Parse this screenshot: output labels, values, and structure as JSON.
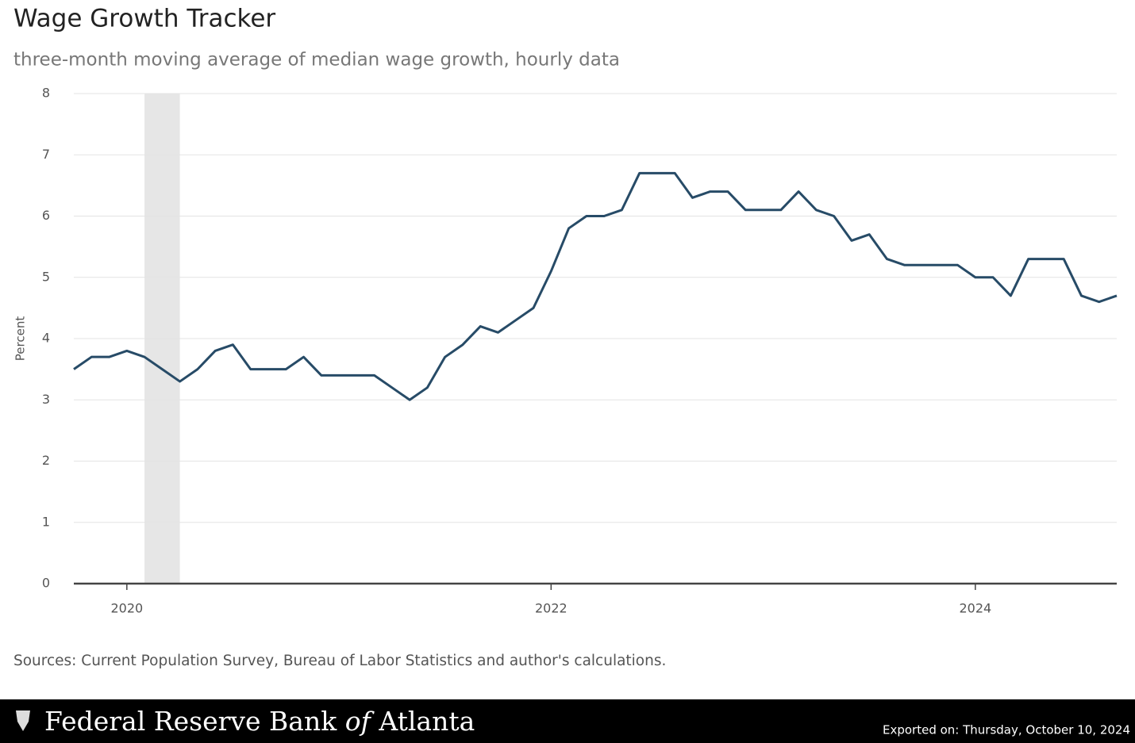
{
  "chart_data": {
    "type": "line",
    "title": "Wage Growth Tracker",
    "subtitle": "three-month moving average of median wage growth, hourly data",
    "y_label": "Percent",
    "x": [
      "2019-10",
      "2019-11",
      "2019-12",
      "2020-01",
      "2020-02",
      "2020-03",
      "2020-04",
      "2020-05",
      "2020-06",
      "2020-07",
      "2020-08",
      "2020-09",
      "2020-10",
      "2020-11",
      "2020-12",
      "2021-01",
      "2021-02",
      "2021-03",
      "2021-04",
      "2021-05",
      "2021-06",
      "2021-07",
      "2021-08",
      "2021-09",
      "2021-10",
      "2021-11",
      "2021-12",
      "2022-01",
      "2022-02",
      "2022-03",
      "2022-04",
      "2022-05",
      "2022-06",
      "2022-07",
      "2022-08",
      "2022-09",
      "2022-10",
      "2022-11",
      "2022-12",
      "2023-01",
      "2023-02",
      "2023-03",
      "2023-04",
      "2023-05",
      "2023-06",
      "2023-07",
      "2023-08",
      "2023-09",
      "2023-10",
      "2023-11",
      "2023-12",
      "2024-01",
      "2024-02",
      "2024-03",
      "2024-04",
      "2024-05",
      "2024-06",
      "2024-07",
      "2024-08",
      "2024-09"
    ],
    "series": [
      {
        "color": "#274b67",
        "values": [
          3.5,
          3.7,
          3.7,
          3.8,
          3.7,
          3.5,
          3.3,
          3.5,
          3.8,
          3.9,
          3.5,
          3.5,
          3.5,
          3.7,
          3.4,
          3.4,
          3.4,
          3.4,
          3.2,
          3.0,
          3.2,
          3.7,
          3.9,
          4.2,
          4.1,
          4.3,
          4.5,
          5.1,
          5.8,
          6.0,
          6.0,
          6.1,
          6.7,
          6.7,
          6.7,
          6.3,
          6.4,
          6.4,
          6.1,
          6.1,
          6.1,
          6.4,
          6.1,
          6.0,
          5.6,
          5.7,
          5.3,
          5.2,
          5.2,
          5.2,
          5.2,
          5.0,
          5.0,
          4.7,
          5.3,
          5.3,
          5.3,
          4.7,
          4.6,
          4.7
        ]
      }
    ],
    "shaded_periods": [
      [
        "2020-02",
        "2020-04"
      ]
    ],
    "shade_color": "#e6e6e6",
    "xlim": [
      "2019-10",
      "2024-09"
    ],
    "xticks": [
      {
        "value": "2020-01",
        "label": "2020"
      },
      {
        "value": "2022-01",
        "label": "2022"
      },
      {
        "value": "2024-01",
        "label": "2024"
      }
    ],
    "ylim": [
      0,
      8
    ],
    "yticks": [
      0,
      1,
      2,
      3,
      4,
      5,
      6,
      7,
      8
    ],
    "grid": true
  },
  "footer": {
    "source": "Sources: Current Population Survey, Bureau of Labor Statistics and author's calculations.",
    "logo": [
      "Federal Reserve Bank",
      "of",
      "Atlanta"
    ],
    "export_note": "Exported on: Thursday, October 10, 2024"
  }
}
